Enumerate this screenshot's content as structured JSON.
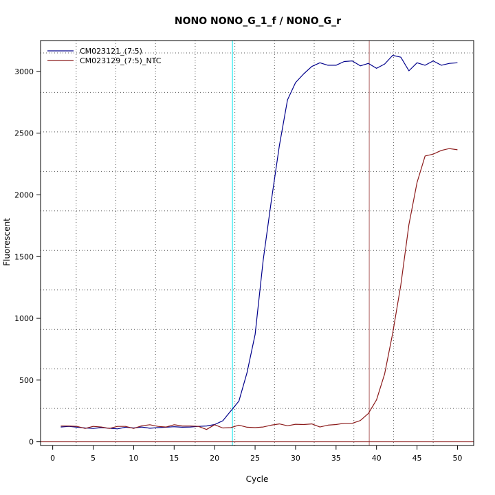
{
  "chart_data": {
    "type": "line",
    "title": "NONO  NONO_G_1_f / NONO_G_r",
    "xlabel": "Cycle",
    "ylabel": "Fluorescent",
    "xlim": [
      -1.5,
      52
    ],
    "ylim": [
      -30,
      3250
    ],
    "xticks": [
      0,
      5,
      10,
      15,
      20,
      25,
      30,
      35,
      40,
      45,
      50
    ],
    "yticks": [
      0,
      500,
      1000,
      1500,
      2000,
      2500,
      3000
    ],
    "grid": "dotted",
    "grid_x": [
      2.9,
      7.8,
      12.7,
      17.6,
      22.5,
      27.4,
      32.3,
      37.2,
      42.1,
      47.0
    ],
    "grid_y": [
      270,
      590,
      910,
      1230,
      1550,
      1870,
      2190,
      2510,
      2830,
      3150
    ],
    "legend_position": "top-left",
    "threshold_lines": [
      {
        "x": 22.2,
        "color": "#00e5ee"
      },
      {
        "x": 39.1,
        "color": "#b06060"
      }
    ],
    "baseline": {
      "y": 0,
      "color": "#8b1a1a"
    },
    "series": [
      {
        "name": "CM023121_(7:5)",
        "color": "#00008b",
        "x": [
          1,
          2,
          3,
          4,
          5,
          6,
          7,
          8,
          9,
          10,
          11,
          12,
          13,
          14,
          15,
          16,
          17,
          18,
          19,
          20,
          21,
          22,
          23,
          24,
          25,
          26,
          27,
          28,
          29,
          30,
          31,
          32,
          33,
          34,
          35,
          36,
          37,
          38,
          39,
          40,
          41,
          42,
          43,
          44,
          45,
          46,
          47,
          48,
          49,
          50
        ],
        "y": [
          120,
          125,
          118,
          112,
          108,
          115,
          110,
          105,
          118,
          112,
          120,
          110,
          115,
          118,
          122,
          118,
          120,
          125,
          128,
          140,
          170,
          250,
          330,
          560,
          870,
          1470,
          1950,
          2400,
          2770,
          2910,
          2980,
          3040,
          3070,
          3050,
          3050,
          3080,
          3085,
          3045,
          3065,
          3025,
          3060,
          3130,
          3115,
          3005,
          3070,
          3050,
          3085,
          3050,
          3065,
          3070
        ]
      },
      {
        "name": "CM023129_(7:5)_NTC",
        "color": "#8b1a1a",
        "x": [
          1,
          2,
          3,
          4,
          5,
          6,
          7,
          8,
          9,
          10,
          11,
          12,
          13,
          14,
          15,
          16,
          17,
          18,
          19,
          20,
          21,
          22,
          23,
          24,
          25,
          26,
          27,
          28,
          29,
          30,
          31,
          32,
          33,
          34,
          35,
          36,
          37,
          38,
          39,
          40,
          41,
          42,
          43,
          44,
          45,
          46,
          47,
          48,
          49,
          50
        ],
        "y": [
          128,
          128,
          125,
          108,
          125,
          120,
          108,
          125,
          125,
          108,
          130,
          138,
          125,
          120,
          138,
          128,
          128,
          125,
          100,
          138,
          112,
          115,
          135,
          118,
          115,
          120,
          135,
          145,
          130,
          142,
          140,
          145,
          120,
          135,
          140,
          150,
          150,
          172,
          230,
          340,
          550,
          880,
          1270,
          1760,
          2100,
          2315,
          2330,
          2360,
          2375,
          2365
        ]
      }
    ]
  }
}
